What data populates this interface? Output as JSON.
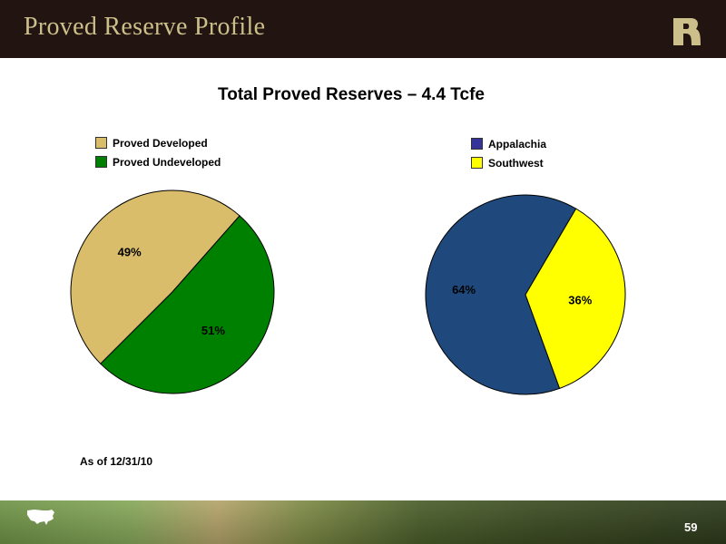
{
  "header": {
    "title": "Proved Reserve Profile",
    "logo_icon": "r-logo-icon"
  },
  "main_title": "Total Proved Reserves – 4.4 Tcfe",
  "chart_data": [
    {
      "type": "pie",
      "title": "",
      "slices": [
        {
          "label": "Proved Developed",
          "value": 49,
          "value_label": "49%",
          "color": "#d9bd6a"
        },
        {
          "label": "Proved Undeveloped",
          "value": 51,
          "value_label": "51%",
          "color": "#008000"
        }
      ],
      "legend_position": "top-left"
    },
    {
      "type": "pie",
      "title": "",
      "slices": [
        {
          "label": "Appalachia",
          "value": 64,
          "value_label": "64%",
          "color": "#1f497d"
        },
        {
          "label": "Southwest",
          "value": 36,
          "value_label": "36%",
          "color": "#ffff00"
        }
      ],
      "legend_position": "top-left"
    }
  ],
  "legend_swatch_colors": [
    "#d9bd6a",
    "#008000",
    "#333399",
    "#ffff00"
  ],
  "footnote": "As of 12/31/10",
  "footer": {
    "page_number": "59",
    "map_icon": "us-map-icon"
  }
}
